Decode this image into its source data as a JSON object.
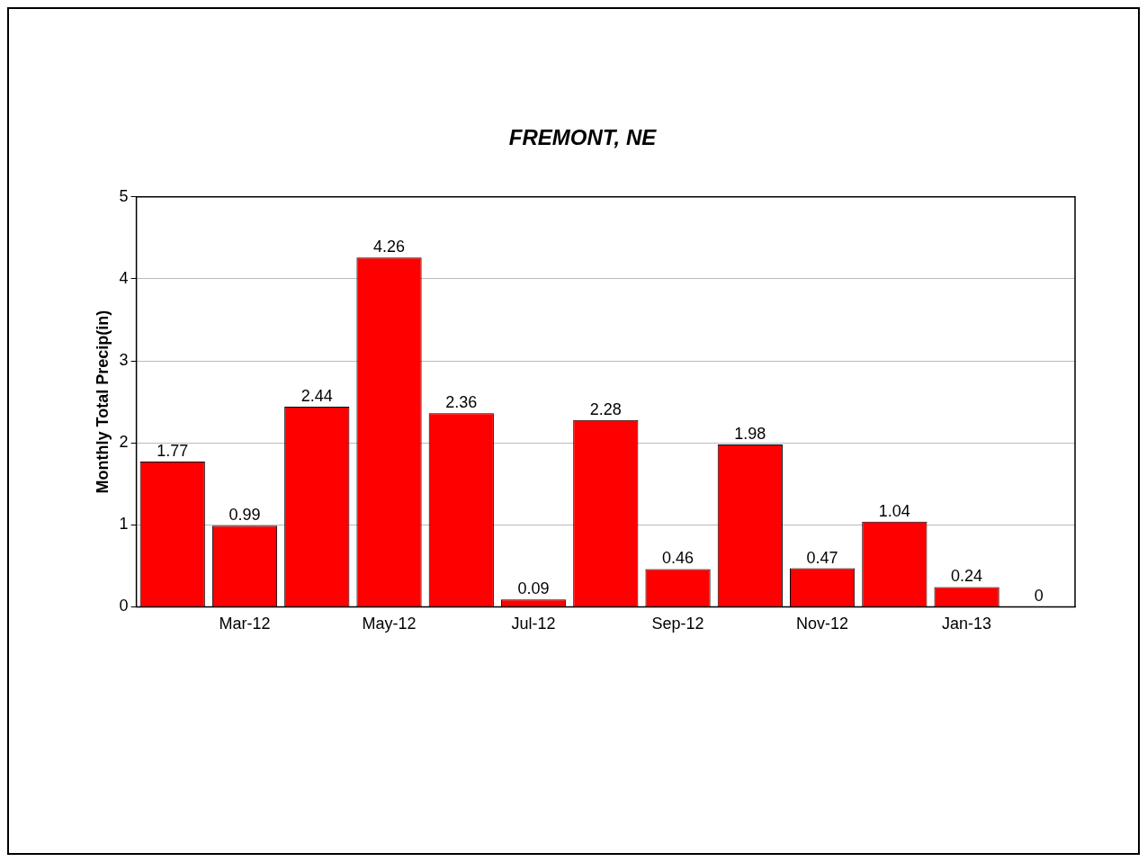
{
  "chart_data": {
    "type": "bar",
    "title": "FREMONT, NE",
    "ylabel": "Monthly Total Precip(in)",
    "categories": [
      null,
      "Mar-12",
      null,
      "May-12",
      null,
      "Jul-12",
      null,
      "Sep-12",
      null,
      "Nov-12",
      null,
      "Jan-13",
      null
    ],
    "values": [
      1.77,
      0.99,
      2.44,
      4.26,
      2.36,
      0.09,
      2.28,
      0.46,
      1.98,
      0.47,
      1.04,
      0.24,
      0
    ],
    "color": "#ff0000",
    "ylim": [
      0,
      5
    ],
    "yticks": [
      0,
      1,
      2,
      3,
      4,
      5
    ],
    "grid": "y",
    "data_labels": true
  }
}
